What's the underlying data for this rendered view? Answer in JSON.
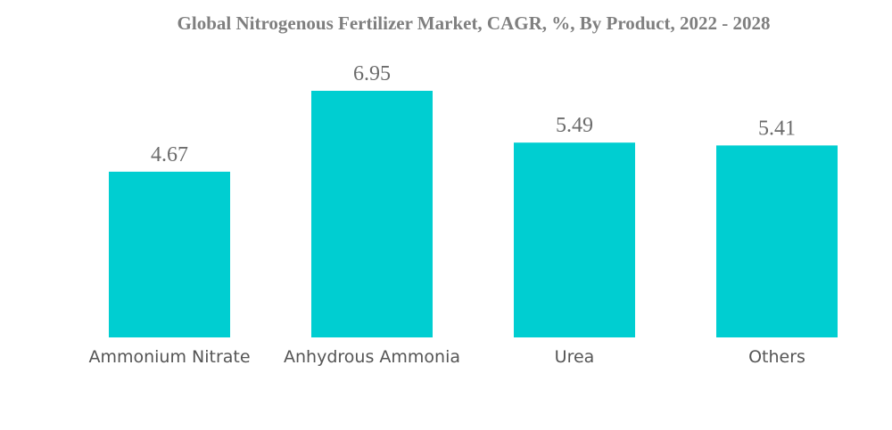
{
  "chart_data": {
    "type": "bar",
    "title": "Global Nitrogenous Fertilizer Market, CAGR, %, By Product, 2022 - 2028",
    "categories": [
      "Ammonium Nitrate",
      "Anhydrous Ammonia",
      "Urea",
      "Others"
    ],
    "values": [
      4.67,
      6.95,
      5.49,
      5.41
    ],
    "value_labels": [
      "4.67",
      "6.95",
      "5.49",
      "5.41"
    ],
    "xlabel": "",
    "ylabel": "",
    "ylim": [
      0,
      6.95
    ],
    "grid": false,
    "legend": "none",
    "bar_color": "#00CED1"
  }
}
